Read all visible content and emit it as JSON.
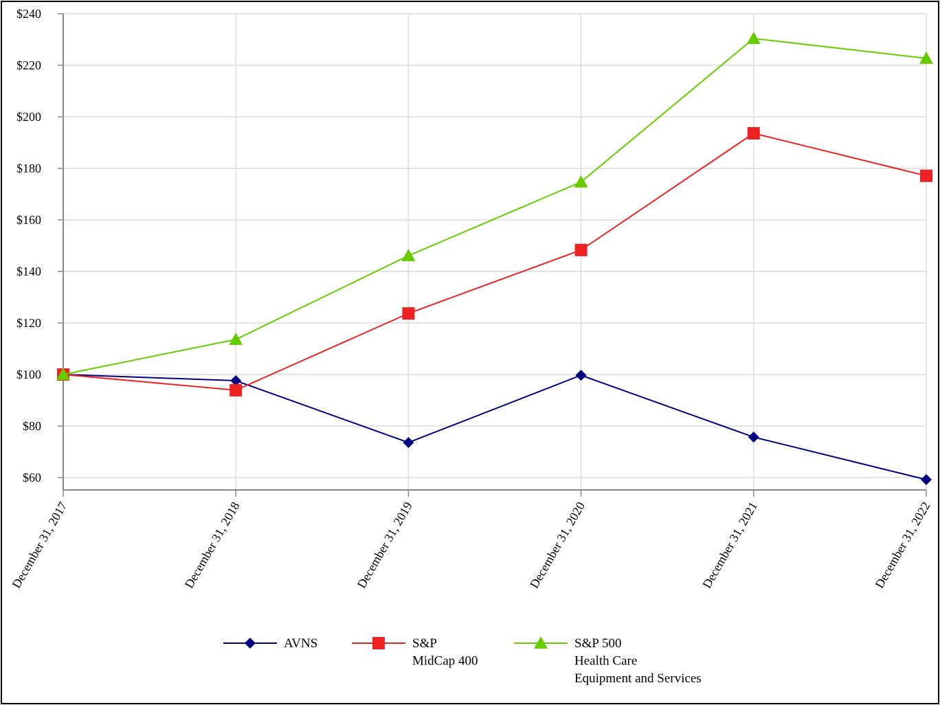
{
  "chart_data": {
    "type": "line",
    "title": "",
    "xlabel": "",
    "ylabel": "",
    "categories": [
      "December 31, 2017",
      "December 31, 2018",
      "December 31, 2019",
      "December 31, 2020",
      "December 31, 2021",
      "December 31, 2022"
    ],
    "y_ticks": [
      "$60",
      "$80",
      "$100",
      "$120",
      "$140",
      "$160",
      "$180",
      "$200",
      "$220",
      "$240"
    ],
    "y_tick_values": [
      60,
      80,
      100,
      120,
      140,
      160,
      180,
      200,
      220,
      240
    ],
    "ylim": [
      55.2,
      240
    ],
    "grid": true,
    "legend_position": "bottom",
    "series": [
      {
        "name": "AVNS",
        "legend_lines": [
          "AVNS"
        ],
        "color": "#000080",
        "marker": "diamond",
        "values": [
          100,
          97.6,
          73.6,
          99.7,
          75.7,
          59.2
        ]
      },
      {
        "name": "S&P MidCap 400",
        "legend_lines": [
          "S&P",
          "MidCap 400"
        ],
        "color": "#ee2222",
        "marker": "square",
        "values": [
          100,
          93.9,
          123.7,
          148.3,
          193.6,
          177.1
        ]
      },
      {
        "name": "S&P 500 Health Care Equipment and Services",
        "legend_lines": [
          "S&P 500",
          "Health Care",
          "Equipment and Services"
        ],
        "color": "#66cc00",
        "marker": "triangle",
        "values": [
          100,
          113.6,
          146.1,
          174.7,
          230.4,
          222.7
        ]
      }
    ]
  }
}
